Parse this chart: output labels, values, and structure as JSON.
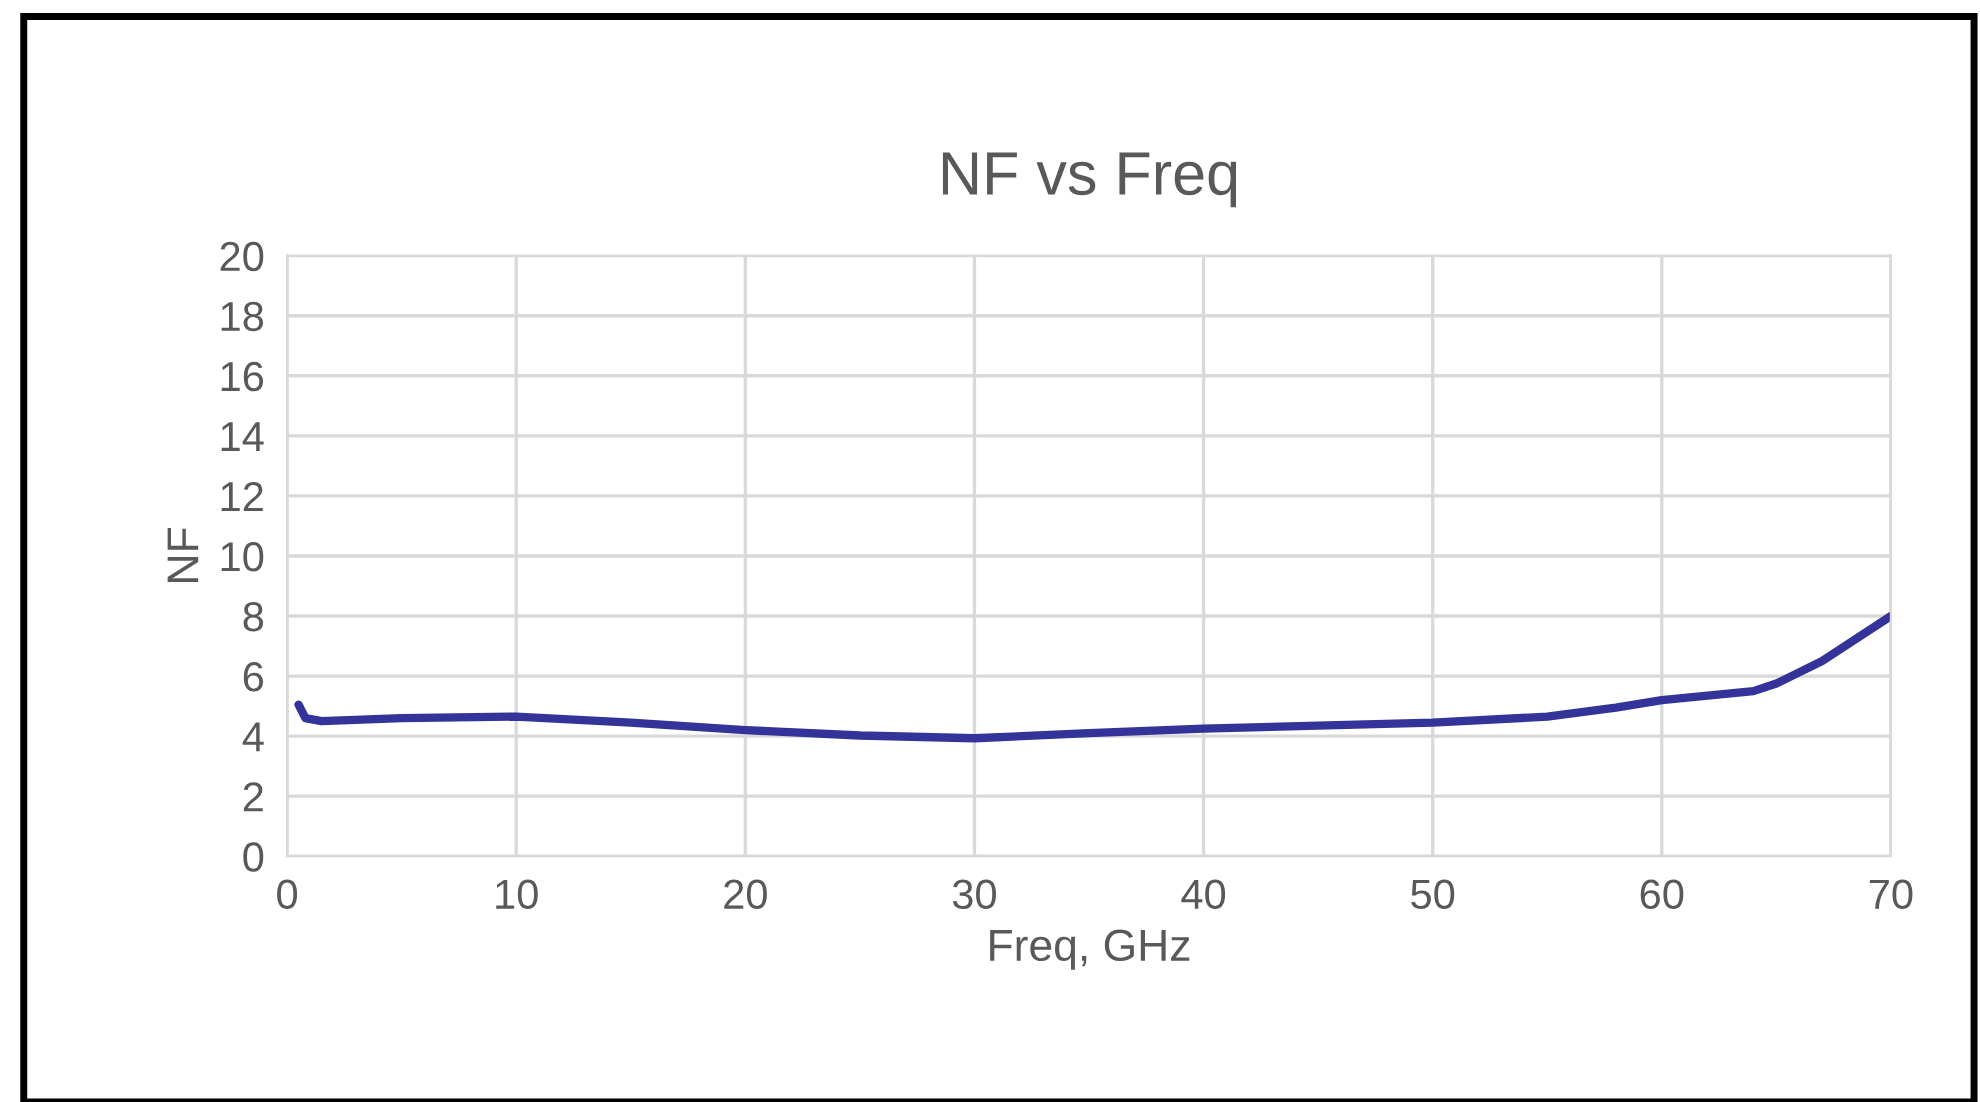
{
  "chart_data": {
    "type": "line",
    "title": "NF vs Freq",
    "xlabel": "Freq, GHz",
    "ylabel": "NF",
    "x": [
      0.5,
      0.8,
      1.5,
      5,
      10,
      15,
      20,
      25,
      30,
      35,
      40,
      45,
      50,
      55,
      58,
      60,
      62,
      64,
      65,
      67,
      70
    ],
    "series": [
      {
        "color": "#33339a",
        "values": [
          5.05,
          4.6,
          4.5,
          4.6,
          4.65,
          4.45,
          4.2,
          4.02,
          3.93,
          4.1,
          4.25,
          4.35,
          4.45,
          4.65,
          4.95,
          5.2,
          5.35,
          5.5,
          5.75,
          6.5,
          8.0
        ]
      }
    ],
    "xlim": [
      0,
      70
    ],
    "xticks": [
      0,
      10,
      20,
      30,
      40,
      50,
      60,
      70
    ],
    "ylim": [
      0,
      20
    ],
    "yticks": [
      0,
      2,
      4,
      6,
      8,
      10,
      12,
      14,
      16,
      18,
      20
    ],
    "grid": true,
    "legend": false,
    "marker": "none",
    "line_style": "solid"
  }
}
